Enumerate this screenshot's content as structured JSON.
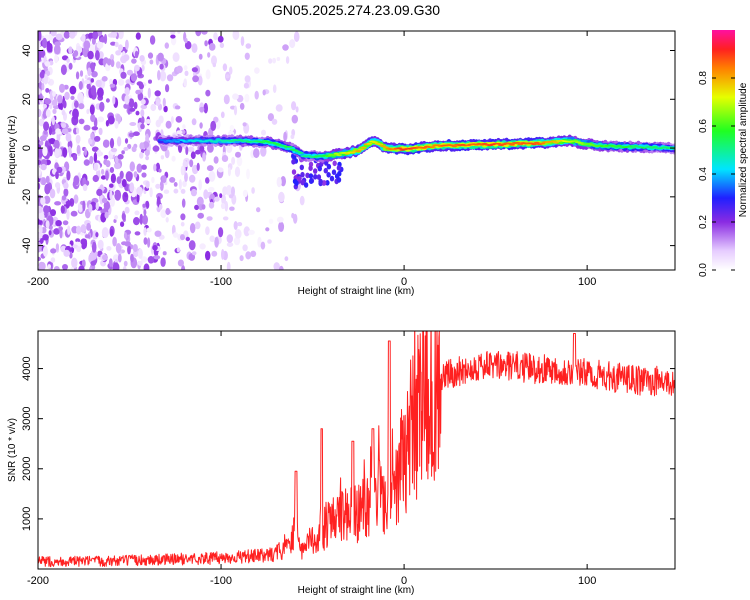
{
  "title": "GN05.2025.274.23.09.G30",
  "chart_data": [
    {
      "type": "heatmap",
      "panel": "top",
      "xlabel": "Height of straight line (km)",
      "ylabel": "Frequency (Hz)",
      "xlim": [
        -200,
        148
      ],
      "ylim": [
        -50,
        48
      ],
      "xticks": [
        -200,
        -100,
        0,
        100
      ],
      "yticks": [
        -40,
        -20,
        0,
        20,
        40
      ],
      "colorbar": {
        "label": "Normalized spectral amplitude",
        "range": [
          0,
          1
        ],
        "ticks": [
          0.0,
          0.2,
          0.4,
          0.6,
          0.8
        ],
        "tick_labels": [
          "0.0",
          "0.2",
          "0.4",
          "0.6",
          "0.8"
        ],
        "colormap": "rainbow (white-violet-blue-cyan-green-yellow-red-magenta)"
      },
      "ridge": {
        "description": "strong narrow spectral line near 0 Hz from about -135 km to 148 km",
        "points": [
          {
            "x": -133,
            "f": 3.0,
            "a": 0.35
          },
          {
            "x": -110,
            "f": 3.0,
            "a": 0.45
          },
          {
            "x": -90,
            "f": 3.0,
            "a": 0.5
          },
          {
            "x": -75,
            "f": 2.5,
            "a": 0.55
          },
          {
            "x": -62,
            "f": 0.0,
            "a": 0.55
          },
          {
            "x": -55,
            "f": -3.0,
            "a": 0.5
          },
          {
            "x": -45,
            "f": -3.5,
            "a": 0.55
          },
          {
            "x": -35,
            "f": -2.5,
            "a": 0.7
          },
          {
            "x": -25,
            "f": -1.0,
            "a": 0.8
          },
          {
            "x": -17,
            "f": 3.0,
            "a": 0.75
          },
          {
            "x": -10,
            "f": 0.0,
            "a": 0.8
          },
          {
            "x": 0,
            "f": -0.5,
            "a": 0.9
          },
          {
            "x": 20,
            "f": 1.0,
            "a": 0.85
          },
          {
            "x": 50,
            "f": 1.5,
            "a": 0.9
          },
          {
            "x": 75,
            "f": 2.0,
            "a": 0.85
          },
          {
            "x": 90,
            "f": 3.0,
            "a": 0.7
          },
          {
            "x": 105,
            "f": 1.0,
            "a": 0.6
          },
          {
            "x": 125,
            "f": 0.5,
            "a": 0.55
          },
          {
            "x": 148,
            "f": 0.0,
            "a": 0.5
          }
        ]
      },
      "noise_region": {
        "x_from": -200,
        "x_to": -60,
        "amplitude_range": [
          0.02,
          0.2
        ]
      }
    },
    {
      "type": "line",
      "panel": "bottom",
      "series": [
        {
          "name": "SNR",
          "color": "#ff2020",
          "x": [
            -200,
            -180,
            -160,
            -140,
            -120,
            -100,
            -90,
            -80,
            -75,
            -70,
            -65,
            -62,
            -60,
            -58,
            -55,
            -50,
            -45,
            -40,
            -35,
            -30,
            -25,
            -20,
            -15,
            -12,
            -10,
            -8,
            -5,
            0,
            5,
            10,
            15,
            20,
            25,
            30,
            35,
            40,
            50,
            60,
            70,
            80,
            90,
            100,
            110,
            120,
            130,
            140,
            148
          ],
          "y": [
            150,
            150,
            160,
            180,
            200,
            220,
            240,
            260,
            280,
            300,
            420,
            600,
            800,
            500,
            350,
            600,
            800,
            900,
            1000,
            1100,
            1150,
            1300,
            1450,
            1600,
            1400,
            1900,
            1800,
            2300,
            2900,
            3300,
            3550,
            3800,
            3900,
            3950,
            4000,
            4050,
            4050,
            4050,
            4000,
            4000,
            3950,
            3900,
            3850,
            3800,
            3750,
            3750,
            3700
          ]
        }
      ],
      "spikes": [
        {
          "x": -59,
          "y": 1950
        },
        {
          "x": -45,
          "y": 2800
        },
        {
          "x": -28,
          "y": 2550
        },
        {
          "x": -17,
          "y": 2800
        },
        {
          "x": -8,
          "y": 4550
        },
        {
          "x": 93,
          "y": 4700
        }
      ],
      "xlabel": "Height of straight line (km)",
      "ylabel": "SNR (10 * v/v)",
      "xlim": [
        -200,
        148
      ],
      "ylim": [
        0,
        4750
      ],
      "xticks": [
        -200,
        -100,
        0,
        100
      ],
      "yticks": [
        1000,
        2000,
        3000,
        4000
      ]
    }
  ]
}
